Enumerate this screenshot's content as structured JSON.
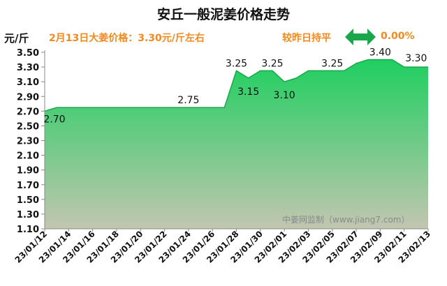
{
  "header": {
    "title": "安丘一般泥姜价格走势",
    "unit": "元/斤",
    "price_note": "2月13日大姜价格：3.30元/斤左右",
    "compare_label": "较昨日持平",
    "change_value": "0.00%",
    "arrow_icon": "double-arrow-icon",
    "accent_color": "#f08a22",
    "arrow_color": "#1aa64a"
  },
  "watermark": "中姜网监制（www.jiang7.com）",
  "chart_data": {
    "type": "area",
    "title": "安丘一般泥姜价格走势",
    "ylabel": "元/斤",
    "ylim": [
      1.1,
      3.5
    ],
    "yticks": [
      "1.10",
      "1.30",
      "1.50",
      "1.70",
      "1.90",
      "2.10",
      "2.30",
      "2.50",
      "2.70",
      "2.90",
      "3.10",
      "3.30",
      "3.50"
    ],
    "xticks": [
      "23/01/12",
      "23/01/14",
      "23/01/16",
      "23/01/18",
      "23/01/20",
      "23/01/22",
      "23/01/24",
      "23/01/26",
      "23/01/28",
      "23/01/30",
      "23/02/01",
      "23/02/03",
      "23/02/05",
      "23/02/07",
      "23/02/09",
      "23/02/11",
      "23/02/13"
    ],
    "x": [
      "23/01/12",
      "23/01/13",
      "23/01/14",
      "23/01/15",
      "23/01/16",
      "23/01/17",
      "23/01/18",
      "23/01/19",
      "23/01/20",
      "23/01/21",
      "23/01/22",
      "23/01/23",
      "23/01/24",
      "23/01/25",
      "23/01/26",
      "23/01/27",
      "23/01/28",
      "23/01/29",
      "23/01/30",
      "23/01/31",
      "23/02/01",
      "23/02/02",
      "23/02/03",
      "23/02/04",
      "23/02/05",
      "23/02/06",
      "23/02/07",
      "23/02/08",
      "23/02/09",
      "23/02/10",
      "23/02/11",
      "23/02/12",
      "23/02/13"
    ],
    "values": [
      2.7,
      2.75,
      2.75,
      2.75,
      2.75,
      2.75,
      2.75,
      2.75,
      2.75,
      2.75,
      2.75,
      2.75,
      2.75,
      2.75,
      2.75,
      2.75,
      3.25,
      3.15,
      3.25,
      3.25,
      3.1,
      3.15,
      3.25,
      3.25,
      3.25,
      3.25,
      3.35,
      3.4,
      3.4,
      3.4,
      3.3,
      3.3,
      3.3
    ],
    "data_labels": [
      {
        "index": 0,
        "text": "2.70"
      },
      {
        "index": 12,
        "text": "2.75"
      },
      {
        "index": 16,
        "text": "3.25"
      },
      {
        "index": 17,
        "text": "3.15"
      },
      {
        "index": 19,
        "text": "3.25"
      },
      {
        "index": 20,
        "text": "3.10"
      },
      {
        "index": 24,
        "text": "3.25"
      },
      {
        "index": 28,
        "text": "3.40"
      },
      {
        "index": 31,
        "text": "3.30"
      }
    ],
    "grid": false,
    "fill_top_color": "#1fcf60",
    "fill_bottom_color": "#c2c6b0",
    "line_color": "#1aa64a"
  }
}
